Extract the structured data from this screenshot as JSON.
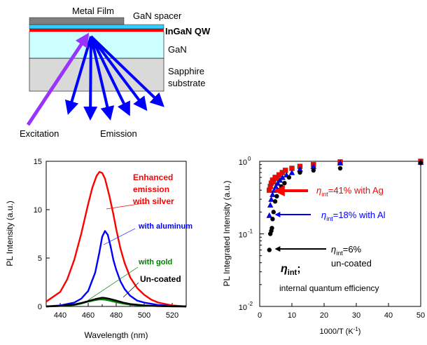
{
  "diagram": {
    "labels": {
      "metal_film": "Metal Film",
      "gan_spacer": "GaN spacer",
      "ingan_qw": "InGaN QW",
      "gan": "GaN",
      "sapphire_line1": "Sapphire",
      "sapphire_line2": "substrate",
      "excitation": "Excitation",
      "emission": "Emission"
    },
    "colors": {
      "metal": "#7f7f7f",
      "spacer": "#33ccff",
      "qw": "#ff0000",
      "gan": "#ccffff",
      "sapphire": "#d9d9d9",
      "excitation": "#9933ff",
      "emission": "#0000ff"
    }
  },
  "chart_data": [
    {
      "type": "line",
      "xlabel": "Wavelength (nm)",
      "ylabel": "PL Intensity (a.u.)",
      "xlim": [
        430,
        530
      ],
      "ylim": [
        0,
        15
      ],
      "xticks": [
        440,
        460,
        480,
        500,
        520
      ],
      "yticks": [
        0,
        5,
        10,
        15
      ],
      "grid": false,
      "series": [
        {
          "name": "Enhanced emission with silver",
          "color": "#ff0000",
          "x": [
            430,
            440,
            445,
            450,
            455,
            460,
            463,
            466,
            468,
            470,
            472,
            475,
            478,
            480,
            483,
            486,
            490,
            495,
            500,
            505,
            510,
            520,
            530
          ],
          "y": [
            0.5,
            1.5,
            2.8,
            4.8,
            7.5,
            10.6,
            12.3,
            13.5,
            13.9,
            13.8,
            13.2,
            11.5,
            9.5,
            8,
            6,
            4.5,
            3,
            1.9,
            1.2,
            0.7,
            0.4,
            0.1,
            0
          ]
        },
        {
          "name": "with aluminum",
          "color": "#0000ff",
          "x": [
            430,
            440,
            450,
            455,
            460,
            465,
            468,
            470,
            472,
            474,
            476,
            478,
            480,
            483,
            486,
            490,
            495,
            500,
            510,
            520,
            530
          ],
          "y": [
            0,
            0.1,
            0.4,
            0.8,
            1.6,
            3.5,
            5.6,
            7.2,
            7.8,
            7.4,
            6.2,
            4.8,
            3.8,
            2.6,
            1.8,
            1.1,
            0.6,
            0.4,
            0.15,
            0.05,
            0
          ]
        },
        {
          "name": "with gold",
          "color": "#008000",
          "x": [
            430,
            440,
            450,
            455,
            460,
            465,
            468,
            470,
            472,
            475,
            480,
            485,
            490,
            500,
            510,
            520,
            530
          ],
          "y": [
            0,
            0.05,
            0.15,
            0.3,
            0.5,
            0.65,
            0.72,
            0.72,
            0.7,
            0.62,
            0.45,
            0.3,
            0.18,
            0.08,
            0.03,
            0.01,
            0
          ]
        },
        {
          "name": "Un-coated",
          "color": "#000000",
          "x": [
            430,
            440,
            450,
            455,
            460,
            465,
            468,
            470,
            472,
            475,
            480,
            485,
            490,
            500,
            510,
            520,
            530
          ],
          "y": [
            0,
            0.05,
            0.2,
            0.35,
            0.55,
            0.75,
            0.85,
            0.9,
            0.88,
            0.8,
            0.6,
            0.4,
            0.25,
            0.1,
            0.04,
            0.01,
            0
          ]
        }
      ],
      "annotations": [
        {
          "text_lines": [
            "Enhanced",
            "emission",
            "with silver"
          ],
          "color": "#ff0000"
        },
        {
          "text": "with aluminum",
          "color": "#0000ff"
        },
        {
          "text": "with gold",
          "color": "#008000"
        },
        {
          "text": "Un-coated",
          "color": "#000000"
        }
      ]
    },
    {
      "type": "scatter",
      "xlabel": "1000/T (K",
      "xlabel_sup": "-1",
      "xlabel_end": ")",
      "ylabel": "PL Integrated Intensity (a.u.)",
      "xlim": [
        0,
        50
      ],
      "ylim": [
        0.01,
        1
      ],
      "yscale": "log",
      "xticks": [
        0,
        10,
        20,
        30,
        40,
        50
      ],
      "ytick_labels": {
        "base": "10",
        "exponents": [
          "0",
          "-1",
          "-2"
        ]
      },
      "series": [
        {
          "name": "Ag",
          "marker": "square",
          "color": "#ff0000",
          "x": [
            3.0,
            3.3,
            3.6,
            4.0,
            4.3,
            4.8,
            5.3,
            6.0,
            7.0,
            8.0,
            10.0,
            12.5,
            16.7,
            25.0,
            50.0
          ],
          "y": [
            0.4,
            0.45,
            0.5,
            0.55,
            0.52,
            0.6,
            0.58,
            0.65,
            0.7,
            0.75,
            0.8,
            0.85,
            0.9,
            0.98,
            1.0
          ]
        },
        {
          "name": "Al",
          "marker": "triangle",
          "color": "#0000ff",
          "x": [
            3.0,
            3.3,
            3.6,
            4.0,
            4.5,
            5.0,
            5.6,
            6.3,
            7.1,
            8.3,
            10.0,
            12.5,
            16.7,
            25.0,
            50.0
          ],
          "y": [
            0.18,
            0.25,
            0.3,
            0.35,
            0.4,
            0.45,
            0.5,
            0.55,
            0.6,
            0.65,
            0.7,
            0.78,
            0.85,
            0.95,
            0.97
          ]
        },
        {
          "name": "un-coated",
          "marker": "circle",
          "color": "#000000",
          "x": [
            3.0,
            3.3,
            3.6,
            3.8,
            4.0,
            4.3,
            4.8,
            5.3,
            5.9,
            6.7,
            7.7,
            9.1,
            12.5,
            16.7,
            25.0,
            50.0
          ],
          "y": [
            0.06,
            0.1,
            0.11,
            0.12,
            0.16,
            0.2,
            0.28,
            0.33,
            0.4,
            0.45,
            0.5,
            0.6,
            0.7,
            0.75,
            0.8,
            0.95
          ]
        }
      ],
      "annotations": {
        "ag": {
          "pre": "η",
          "sub": "int",
          "post": "=41% with Ag",
          "color": "#ff0000"
        },
        "al": {
          "pre": "η",
          "sub": "int",
          "post": "=18% with Al",
          "color": "#0000ff"
        },
        "unc": {
          "pre": "η",
          "sub": "int",
          "post": "=6%",
          "line2": "un-coated",
          "color": "#000000"
        },
        "def": {
          "pre": "η",
          "sub": "int",
          "post": ";",
          "caption": "internal quantum efficiency"
        }
      }
    }
  ]
}
